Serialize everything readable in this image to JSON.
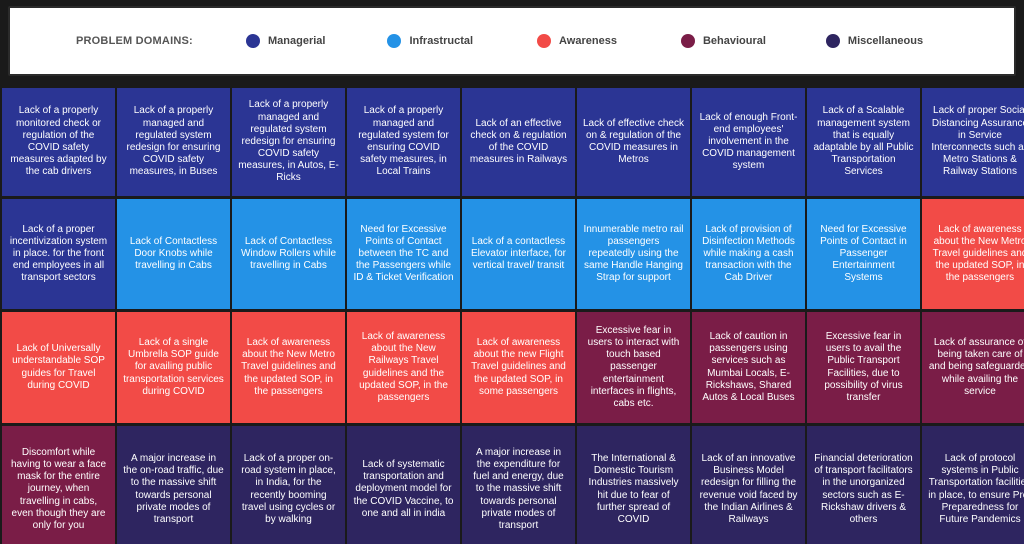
{
  "legend": {
    "title": "PROBLEM DOMAINS:",
    "items": [
      {
        "label": "Managerial",
        "color": "#2b3594"
      },
      {
        "label": "Infrastructal",
        "color": "#2492e6"
      },
      {
        "label": "Awareness",
        "color": "#f24b47"
      },
      {
        "label": "Behavioural",
        "color": "#7a1d47"
      },
      {
        "label": "Miscellaneous",
        "color": "#2e2560"
      }
    ]
  },
  "cells": [
    {
      "domain": "managerial",
      "text": "Lack of a properly monitored check or regulation of the COVID safety measures adapted by the cab drivers"
    },
    {
      "domain": "managerial",
      "text": "Lack of a properly managed and regulated system redesign for ensuring COVID safety measures, in Buses"
    },
    {
      "domain": "managerial",
      "text": "Lack of a properly managed and regulated system redesign for ensuring COVID safety measures, in Autos, E-Ricks"
    },
    {
      "domain": "managerial",
      "text": "Lack of a properly managed and regulated system for ensuring COVID safety measures, in Local Trains"
    },
    {
      "domain": "managerial",
      "text": "Lack of an effective check on & regulation of the COVID measures in Railways"
    },
    {
      "domain": "managerial",
      "text": "Lack of effective check on & regulation of the COVID measures in Metros"
    },
    {
      "domain": "managerial",
      "text": "Lack of enough Front-end employees' involvement in the COVID management system"
    },
    {
      "domain": "managerial",
      "text": "Lack of a Scalable management system that is equally adaptable by all Public Transportation Services"
    },
    {
      "domain": "managerial",
      "text": "Lack of proper Social Distancing Assurance in Service Interconnects such as Metro Stations & Railway Stations"
    },
    {
      "domain": "managerial",
      "text": "Lack of a proper incentivization system in place. for the front end employees in all transport sectors"
    },
    {
      "domain": "infrastructural",
      "text": "Lack of Contactless Door Knobs while travelling in Cabs"
    },
    {
      "domain": "infrastructural",
      "text": "Lack of Contactless Window Rollers while travelling in Cabs"
    },
    {
      "domain": "infrastructural",
      "text": "Need for Excessive Points of Contact between the TC and the Passengers while ID & Ticket Verification"
    },
    {
      "domain": "infrastructural",
      "text": "Lack of a contactless Elevator interface, for vertical travel/ transit"
    },
    {
      "domain": "infrastructural",
      "text": "Innumerable metro rail passengers repeatedly using the same Handle Hanging Strap for support"
    },
    {
      "domain": "infrastructural",
      "text": "Lack of provision of Disinfection Methods while making a cash transaction with the Cab Driver"
    },
    {
      "domain": "infrastructural",
      "text": "Need for Excessive Points of Contact in Passenger Entertainment Systems"
    },
    {
      "domain": "awareness",
      "text": "Lack of awareness about the New Metro Travel guidelines and the updated SOP, in the passengers"
    },
    {
      "domain": "awareness",
      "text": "Lack of Universally understandable SOP guides for Travel during COVID"
    },
    {
      "domain": "awareness",
      "text": "Lack of a single Umbrella SOP guide for availing public transportation services during COVID"
    },
    {
      "domain": "awareness",
      "text": "Lack of awareness about the New Metro Travel guidelines and the updated SOP, in the passengers"
    },
    {
      "domain": "awareness",
      "text": "Lack of awareness about the New Railways Travel guidelines and the updated SOP, in the passengers"
    },
    {
      "domain": "awareness",
      "text": "Lack of awareness about the new Flight Travel guidelines and the updated SOP, in some passengers"
    },
    {
      "domain": "behavioural",
      "text": "Excessive fear in users to interact with touch based passenger entertainment interfaces in flights, cabs etc."
    },
    {
      "domain": "behavioural",
      "text": "Lack of caution in passengers using services such as Mumbai Locals, E-Rickshaws, Shared Autos & Local Buses"
    },
    {
      "domain": "behavioural",
      "text": "Excessive fear in users to avail the Public Transport Facilities, due to possibility of virus transfer"
    },
    {
      "domain": "behavioural",
      "text": "Lack of assurance of being taken care of and being safeguarded while availing the service"
    },
    {
      "domain": "behavioural",
      "text": "Discomfort while having to wear a face mask for the entire journey, when travelling in cabs, even though they are only for you"
    },
    {
      "domain": "miscellaneous",
      "text": "A major increase in the on-road traffic, due to the massive shift towards personal private modes of transport"
    },
    {
      "domain": "miscellaneous",
      "text": "Lack of a proper on-road system in place, in India, for the recently booming travel using cycles or by walking"
    },
    {
      "domain": "miscellaneous",
      "text": "Lack of systematic transportation and deployment model for the COVID Vaccine, to one and all in india"
    },
    {
      "domain": "miscellaneous",
      "text": "A major increase in the expenditure for fuel and energy, due to the massive shift towards personal private modes of transport"
    },
    {
      "domain": "miscellaneous",
      "text": "The International & Domestic Tourism Industries massively hit due to fear of further spread of COVID"
    },
    {
      "domain": "miscellaneous",
      "text": "Lack of an innovative Business Model redesign for filling the revenue void faced by the Indian Airlines & Railways"
    },
    {
      "domain": "miscellaneous",
      "text": "Financial deterioration of transport facilitators in the unorganized sectors such as E-Rickshaw drivers & others"
    },
    {
      "domain": "miscellaneous",
      "text": "Lack of protocol systems in Public Transportation facilities in place, to ensure Pre-Preparedness for Future Pandemics"
    }
  ]
}
